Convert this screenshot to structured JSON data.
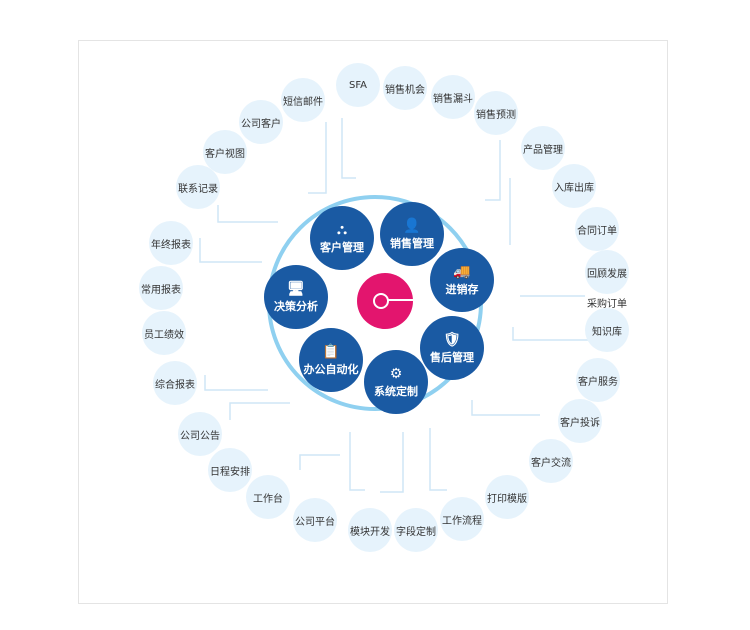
{
  "center_modules": [
    {
      "label": "客户管理",
      "icon": "org-chart-icon"
    },
    {
      "label": "销售管理",
      "icon": "user-dollar-icon"
    },
    {
      "label": "进销存",
      "icon": "truck-icon"
    },
    {
      "label": "售后管理",
      "icon": "shield-person-icon"
    },
    {
      "label": "系统定制",
      "icon": "gear-icon"
    },
    {
      "label": "办公自动化",
      "icon": "clipboard-check-icon"
    },
    {
      "label": "决策分析",
      "icon": "presentation-icon"
    }
  ],
  "outer_items": [
    "短信邮件",
    "公司客户",
    "客户视图",
    "联系记录",
    "SFA",
    "销售机会",
    "销售漏斗",
    "销售预测",
    "产品管理",
    "入库出库",
    "合同订单",
    "回顾发展",
    "采购订单",
    "知识库",
    "客户服务",
    "客户投诉",
    "客户交流",
    "打印模版",
    "工作流程",
    "字段定制",
    "模块开发",
    "公司平台",
    "工作台",
    "日程安排",
    "公司公告",
    "综合报表",
    "员工绩效",
    "常用报表",
    "年终报表"
  ],
  "colors": {
    "module": "#1a5aa3",
    "hub": "#e3156e",
    "ring": "#8fd0f0",
    "bubble": "#e6f3fc"
  }
}
